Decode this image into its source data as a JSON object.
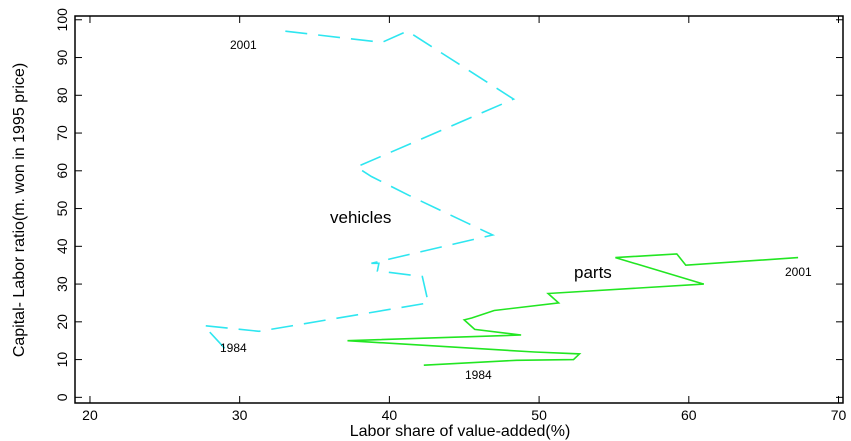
{
  "chart_data": {
    "type": "line",
    "x_label": "Labor share of value-added(%)",
    "y_label": "Capital- Labor ratio(m. won in 1995 price)",
    "xlim": [
      19,
      70.3
    ],
    "ylim": [
      -1.5,
      101
    ],
    "xticks": [
      20,
      30,
      40,
      50,
      60,
      70
    ],
    "yticks": [
      0,
      10,
      20,
      30,
      40,
      50,
      60,
      70,
      80,
      90,
      100
    ],
    "series": [
      {
        "name": "vehicles",
        "color": "#2ee6f0",
        "dashed": true,
        "x": [
          29.0,
          28.3,
          27.6,
          31.3,
          42.6,
          42.2,
          39.2,
          39.3,
          38.8,
          46.9,
          45.3,
          41.3,
          38.8,
          37.8,
          48.3,
          41.2,
          39.5,
          33.0
        ],
        "values": [
          13,
          16,
          19,
          17.5,
          25,
          32,
          33.5,
          35.5,
          35.5,
          43,
          46,
          53.5,
          58.5,
          61,
          79,
          97,
          94,
          97
        ]
      },
      {
        "name": "parts",
        "color": "#22e622",
        "dashed": false,
        "x": [
          42.3,
          48.5,
          52.3,
          52.7,
          49.7,
          37.2,
          48.8,
          45.7,
          45.0,
          45.5,
          47.0,
          51.3,
          50.6,
          61.0,
          55.1,
          59.2,
          59.8,
          67.3
        ],
        "values": [
          8.5,
          9.8,
          10,
          11.5,
          12,
          15,
          16.5,
          18,
          20.5,
          21,
          23,
          25,
          27.5,
          30,
          37,
          38,
          35,
          37
        ]
      }
    ],
    "annotations": [
      "2001",
      "1984",
      "vehicles",
      "parts",
      "2001",
      "1984"
    ]
  }
}
